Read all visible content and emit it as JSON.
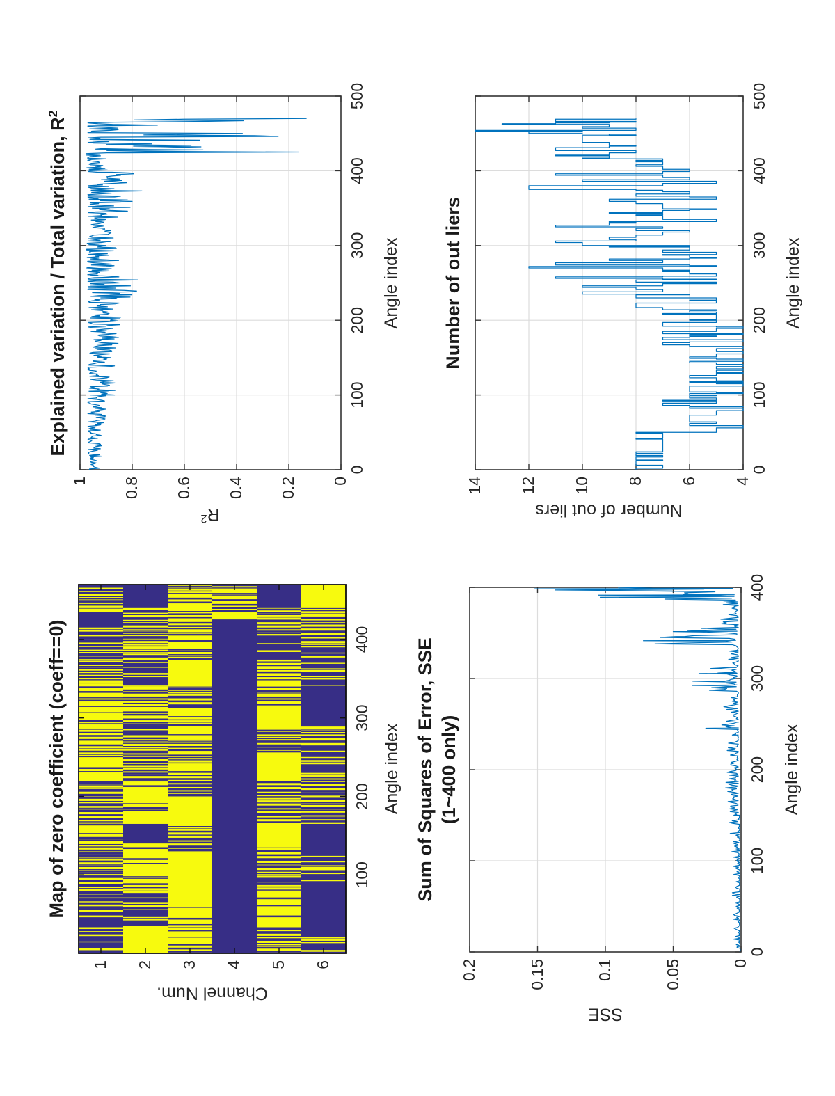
{
  "figure": {
    "kind": "MATLAB-style 2x2 analysis figure (rendered rotated 90 degrees to portrait)",
    "background": "#ffffff"
  },
  "colors": {
    "line_blue": "#0072BD",
    "map_yellow": "#F7FA0E",
    "map_blue": "#372E86",
    "grid": "#DCDCDC",
    "axis_box": "#333333",
    "text": "#262626"
  },
  "chart_data": [
    {
      "id": "zero_coeff_map",
      "type": "heatmap",
      "title": "Map of zero coefficient (coeff==0)",
      "xlabel": "Angle index",
      "ylabel": "Channel Num.",
      "x_ticks": [
        100,
        200,
        300,
        400
      ],
      "y_ticks": [
        1,
        2,
        3,
        4,
        5,
        6
      ],
      "x_range": [
        0,
        470
      ],
      "n_channels": 6,
      "segment_types": {
        "b": "solid blue (coeff nonzero)",
        "y": "solid yellow (coeff==0)",
        "bm": "blue with sparse yellow stripes",
        "ym": "yellow with sparse blue stripes",
        "m": "dense mixed yellow/blue stripes"
      },
      "channels": [
        {
          "channel": 1,
          "segments": [
            [
              0,
              75,
              "bm"
            ],
            [
              75,
              130,
              "m"
            ],
            [
              130,
              170,
              "ym"
            ],
            [
              170,
              220,
              "m"
            ],
            [
              220,
              345,
              "ym"
            ],
            [
              345,
              400,
              "m"
            ],
            [
              400,
              440,
              "bm"
            ],
            [
              440,
              470,
              "m"
            ]
          ]
        },
        {
          "channel": 2,
          "segments": [
            [
              0,
              35,
              "y"
            ],
            [
              35,
              80,
              "bm"
            ],
            [
              80,
              140,
              "ym"
            ],
            [
              140,
              165,
              "b"
            ],
            [
              165,
              220,
              "ym"
            ],
            [
              220,
              290,
              "m"
            ],
            [
              290,
              340,
              "ym"
            ],
            [
              340,
              375,
              "bm"
            ],
            [
              375,
              440,
              "m"
            ],
            [
              440,
              470,
              "b"
            ]
          ]
        },
        {
          "channel": 3,
          "segments": [
            [
              0,
              60,
              "ym"
            ],
            [
              60,
              130,
              "y"
            ],
            [
              130,
              165,
              "m"
            ],
            [
              165,
              200,
              "y"
            ],
            [
              200,
              235,
              "m"
            ],
            [
              235,
              315,
              "ym"
            ],
            [
              315,
              340,
              "m"
            ],
            [
              340,
              370,
              "y"
            ],
            [
              370,
              470,
              "ym"
            ]
          ]
        },
        {
          "channel": 4,
          "segments": [
            [
              0,
              425,
              "b"
            ],
            [
              425,
              470,
              "ym"
            ]
          ]
        },
        {
          "channel": 5,
          "segments": [
            [
              0,
              35,
              "m"
            ],
            [
              35,
              80,
              "ym"
            ],
            [
              80,
              135,
              "m"
            ],
            [
              135,
              165,
              "y"
            ],
            [
              165,
              220,
              "m"
            ],
            [
              220,
              255,
              "y"
            ],
            [
              255,
              285,
              "m"
            ],
            [
              285,
              315,
              "y"
            ],
            [
              315,
              340,
              "m"
            ],
            [
              340,
              370,
              "ym"
            ],
            [
              370,
              405,
              "bm"
            ],
            [
              405,
              440,
              "m"
            ],
            [
              440,
              470,
              "b"
            ]
          ]
        },
        {
          "channel": 6,
          "segments": [
            [
              0,
              30,
              "bm"
            ],
            [
              30,
              65,
              "b"
            ],
            [
              65,
              125,
              "bm"
            ],
            [
              125,
              165,
              "b"
            ],
            [
              165,
              230,
              "m"
            ],
            [
              230,
              265,
              "bm"
            ],
            [
              265,
              290,
              "m"
            ],
            [
              290,
              340,
              "b"
            ],
            [
              340,
              395,
              "bm"
            ],
            [
              395,
              440,
              "m"
            ],
            [
              440,
              470,
              "y"
            ]
          ]
        }
      ]
    },
    {
      "id": "r2",
      "type": "line",
      "title": "Explained variation / Total variation, R",
      "title_sup": "2",
      "xlabel": "Angle index",
      "ylabel": "R",
      "ylabel_sup": "2",
      "x_ticks": [
        0,
        100,
        200,
        300,
        400,
        500
      ],
      "y_ticks": [
        0,
        0.2,
        0.4,
        0.6,
        0.8,
        1
      ],
      "xlim": [
        0,
        500
      ],
      "ylim": [
        0,
        1
      ],
      "grid": true,
      "line_color": "#0072BD",
      "envelope_format": [
        "x_start",
        "x_end",
        "y_min",
        "y_max",
        "bias_exponent_toward_max"
      ],
      "envelope_segments": [
        [
          0,
          15,
          0.925,
          0.965,
          1.2
        ],
        [
          15,
          60,
          0.915,
          0.97,
          1.5
        ],
        [
          60,
          100,
          0.9,
          0.97,
          1.5
        ],
        [
          100,
          150,
          0.865,
          0.97,
          1.6
        ],
        [
          150,
          190,
          0.85,
          0.965,
          1.5
        ],
        [
          190,
          230,
          0.84,
          0.97,
          1.7
        ],
        [
          230,
          260,
          0.77,
          0.97,
          2.2
        ],
        [
          260,
          305,
          0.85,
          0.975,
          1.5
        ],
        [
          305,
          335,
          0.86,
          0.97,
          1.5
        ],
        [
          335,
          365,
          0.8,
          0.97,
          2.0
        ],
        [
          365,
          398,
          0.73,
          0.97,
          2.4
        ],
        [
          398,
          424,
          0.895,
          0.975,
          1.3
        ],
        [
          424,
          470,
          0.1,
          0.97,
          2.6
        ]
      ]
    },
    {
      "id": "sse",
      "type": "line",
      "title": "Sum of Squares of Error, SSE",
      "title_line2": "(1~400 only)",
      "xlabel": "Angle index",
      "ylabel": "SSE",
      "x_ticks": [
        0,
        100,
        200,
        300,
        400
      ],
      "y_ticks": [
        0,
        0.05,
        0.1,
        0.15,
        0.2
      ],
      "xlim": [
        0,
        400
      ],
      "ylim": [
        0,
        0.2
      ],
      "grid": true,
      "line_color": "#0072BD",
      "envelope_format": [
        "x_start",
        "x_end",
        "y_min",
        "y_max",
        "bias_exponent_toward_min",
        "has_peak_at_max"
      ],
      "envelope_segments": [
        [
          0,
          6,
          0.0005,
          0.004,
          3,
          0
        ],
        [
          6,
          100,
          0.001,
          0.007,
          3.5,
          0
        ],
        [
          100,
          150,
          0.001,
          0.009,
          3.5,
          0
        ],
        [
          150,
          238,
          0.002,
          0.013,
          3,
          0
        ],
        [
          238,
          252,
          0.002,
          0.026,
          2.5,
          1
        ],
        [
          252,
          286,
          0.002,
          0.013,
          3,
          0
        ],
        [
          286,
          297,
          0.003,
          0.036,
          2.2,
          1
        ],
        [
          297,
          312,
          0.003,
          0.031,
          2.2,
          1
        ],
        [
          312,
          336,
          0.002,
          0.013,
          3,
          0
        ],
        [
          336,
          346,
          0.004,
          0.072,
          2.0,
          1
        ],
        [
          346,
          356,
          0.003,
          0.05,
          2.0,
          1
        ],
        [
          356,
          386,
          0.002,
          0.016,
          3,
          0
        ],
        [
          386,
          396,
          0.005,
          0.105,
          1.8,
          1
        ],
        [
          396,
          400,
          0.006,
          0.152,
          1.2,
          1
        ]
      ]
    },
    {
      "id": "outliers",
      "type": "line",
      "step": true,
      "title": "Number of out liers",
      "xlabel": "Angle index",
      "ylabel": "Number of out liers",
      "x_ticks": [
        0,
        100,
        200,
        300,
        400,
        500
      ],
      "y_ticks": [
        4,
        6,
        8,
        10,
        12,
        14
      ],
      "xlim": [
        0,
        500
      ],
      "ylim": [
        4,
        14
      ],
      "grid": true,
      "line_color": "#0072BD",
      "envelope_format": [
        "x_start",
        "x_end",
        "count_min",
        "count_max",
        "bias_exponent_toward_min"
      ],
      "envelope_segments": [
        [
          0,
          28,
          7,
          8,
          0.8
        ],
        [
          28,
          50,
          7,
          8,
          1
        ],
        [
          50,
          56,
          5,
          6,
          1
        ],
        [
          56,
          100,
          4,
          7,
          1.4
        ],
        [
          100,
          165,
          4,
          6,
          1.3
        ],
        [
          165,
          205,
          4,
          7,
          1.2
        ],
        [
          205,
          235,
          5,
          8,
          1
        ],
        [
          235,
          258,
          5,
          11,
          1.8
        ],
        [
          258,
          300,
          5,
          12,
          1.8
        ],
        [
          300,
          332,
          6,
          11,
          1.6
        ],
        [
          332,
          362,
          5,
          10,
          1.4
        ],
        [
          362,
          386,
          5,
          13,
          2.2
        ],
        [
          386,
          406,
          6,
          11,
          1.4
        ],
        [
          406,
          420,
          7,
          11,
          1.3
        ],
        [
          420,
          433,
          8,
          14,
          1.8
        ],
        [
          433,
          448,
          7,
          11,
          1.2
        ],
        [
          448,
          463,
          8,
          14,
          1.7
        ],
        [
          463,
          470,
          8,
          11,
          1
        ]
      ]
    }
  ]
}
